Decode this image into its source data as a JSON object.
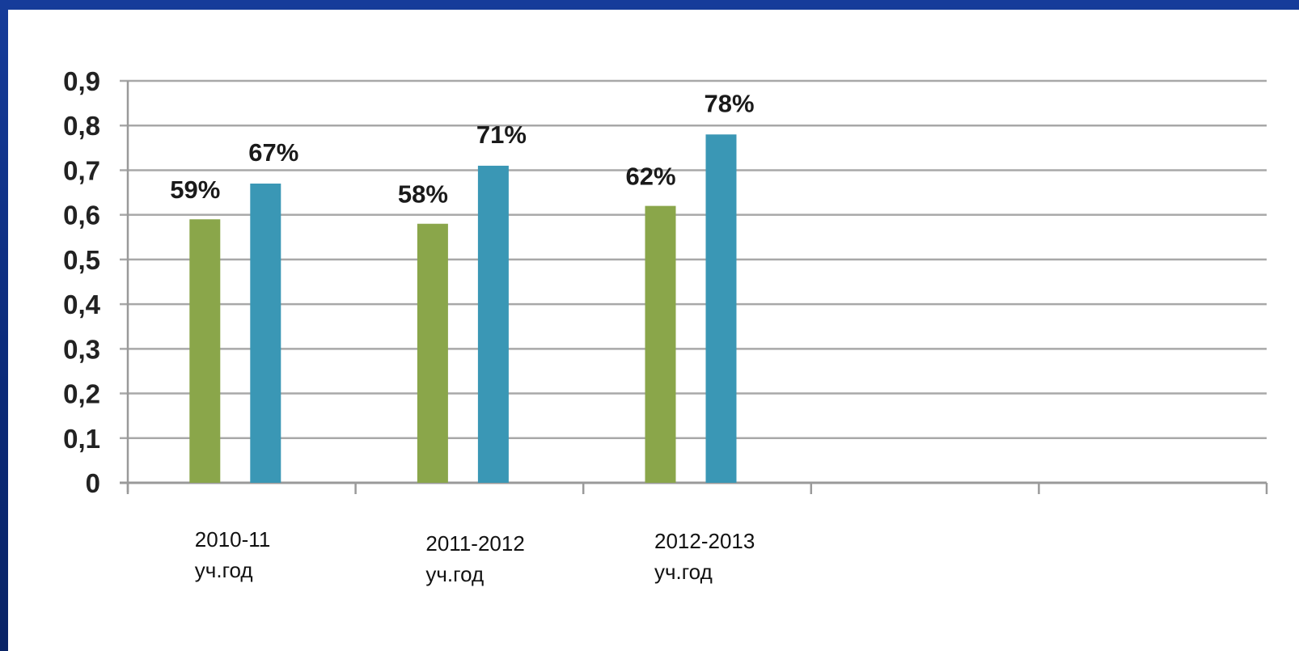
{
  "chart_data": {
    "type": "bar",
    "title": "",
    "xlabel": "",
    "ylabel": "",
    "ylim": [
      0,
      0.9
    ],
    "yticks": [
      "0",
      "0,1",
      "0,2",
      "0,3",
      "0,4",
      "0,5",
      "0,6",
      "0,7",
      "0,8",
      "0,9"
    ],
    "grid": true,
    "legend": "none",
    "categories": [
      [
        "2010-11",
        "уч.год"
      ],
      [
        "2011-2012",
        "уч.год"
      ],
      [
        "2012-2013",
        "уч.год"
      ],
      [
        "",
        ""
      ],
      [
        "",
        ""
      ]
    ],
    "series": [
      {
        "color": "#8aa64a",
        "values": [
          0.59,
          0.58,
          0.62,
          null,
          null
        ],
        "labels": [
          "59%",
          "58%",
          "62%",
          "",
          ""
        ]
      },
      {
        "color": "#3a97b5",
        "values": [
          0.67,
          0.71,
          0.78,
          null,
          null
        ],
        "labels": [
          "67%",
          "71%",
          "78%",
          "",
          ""
        ]
      }
    ]
  }
}
